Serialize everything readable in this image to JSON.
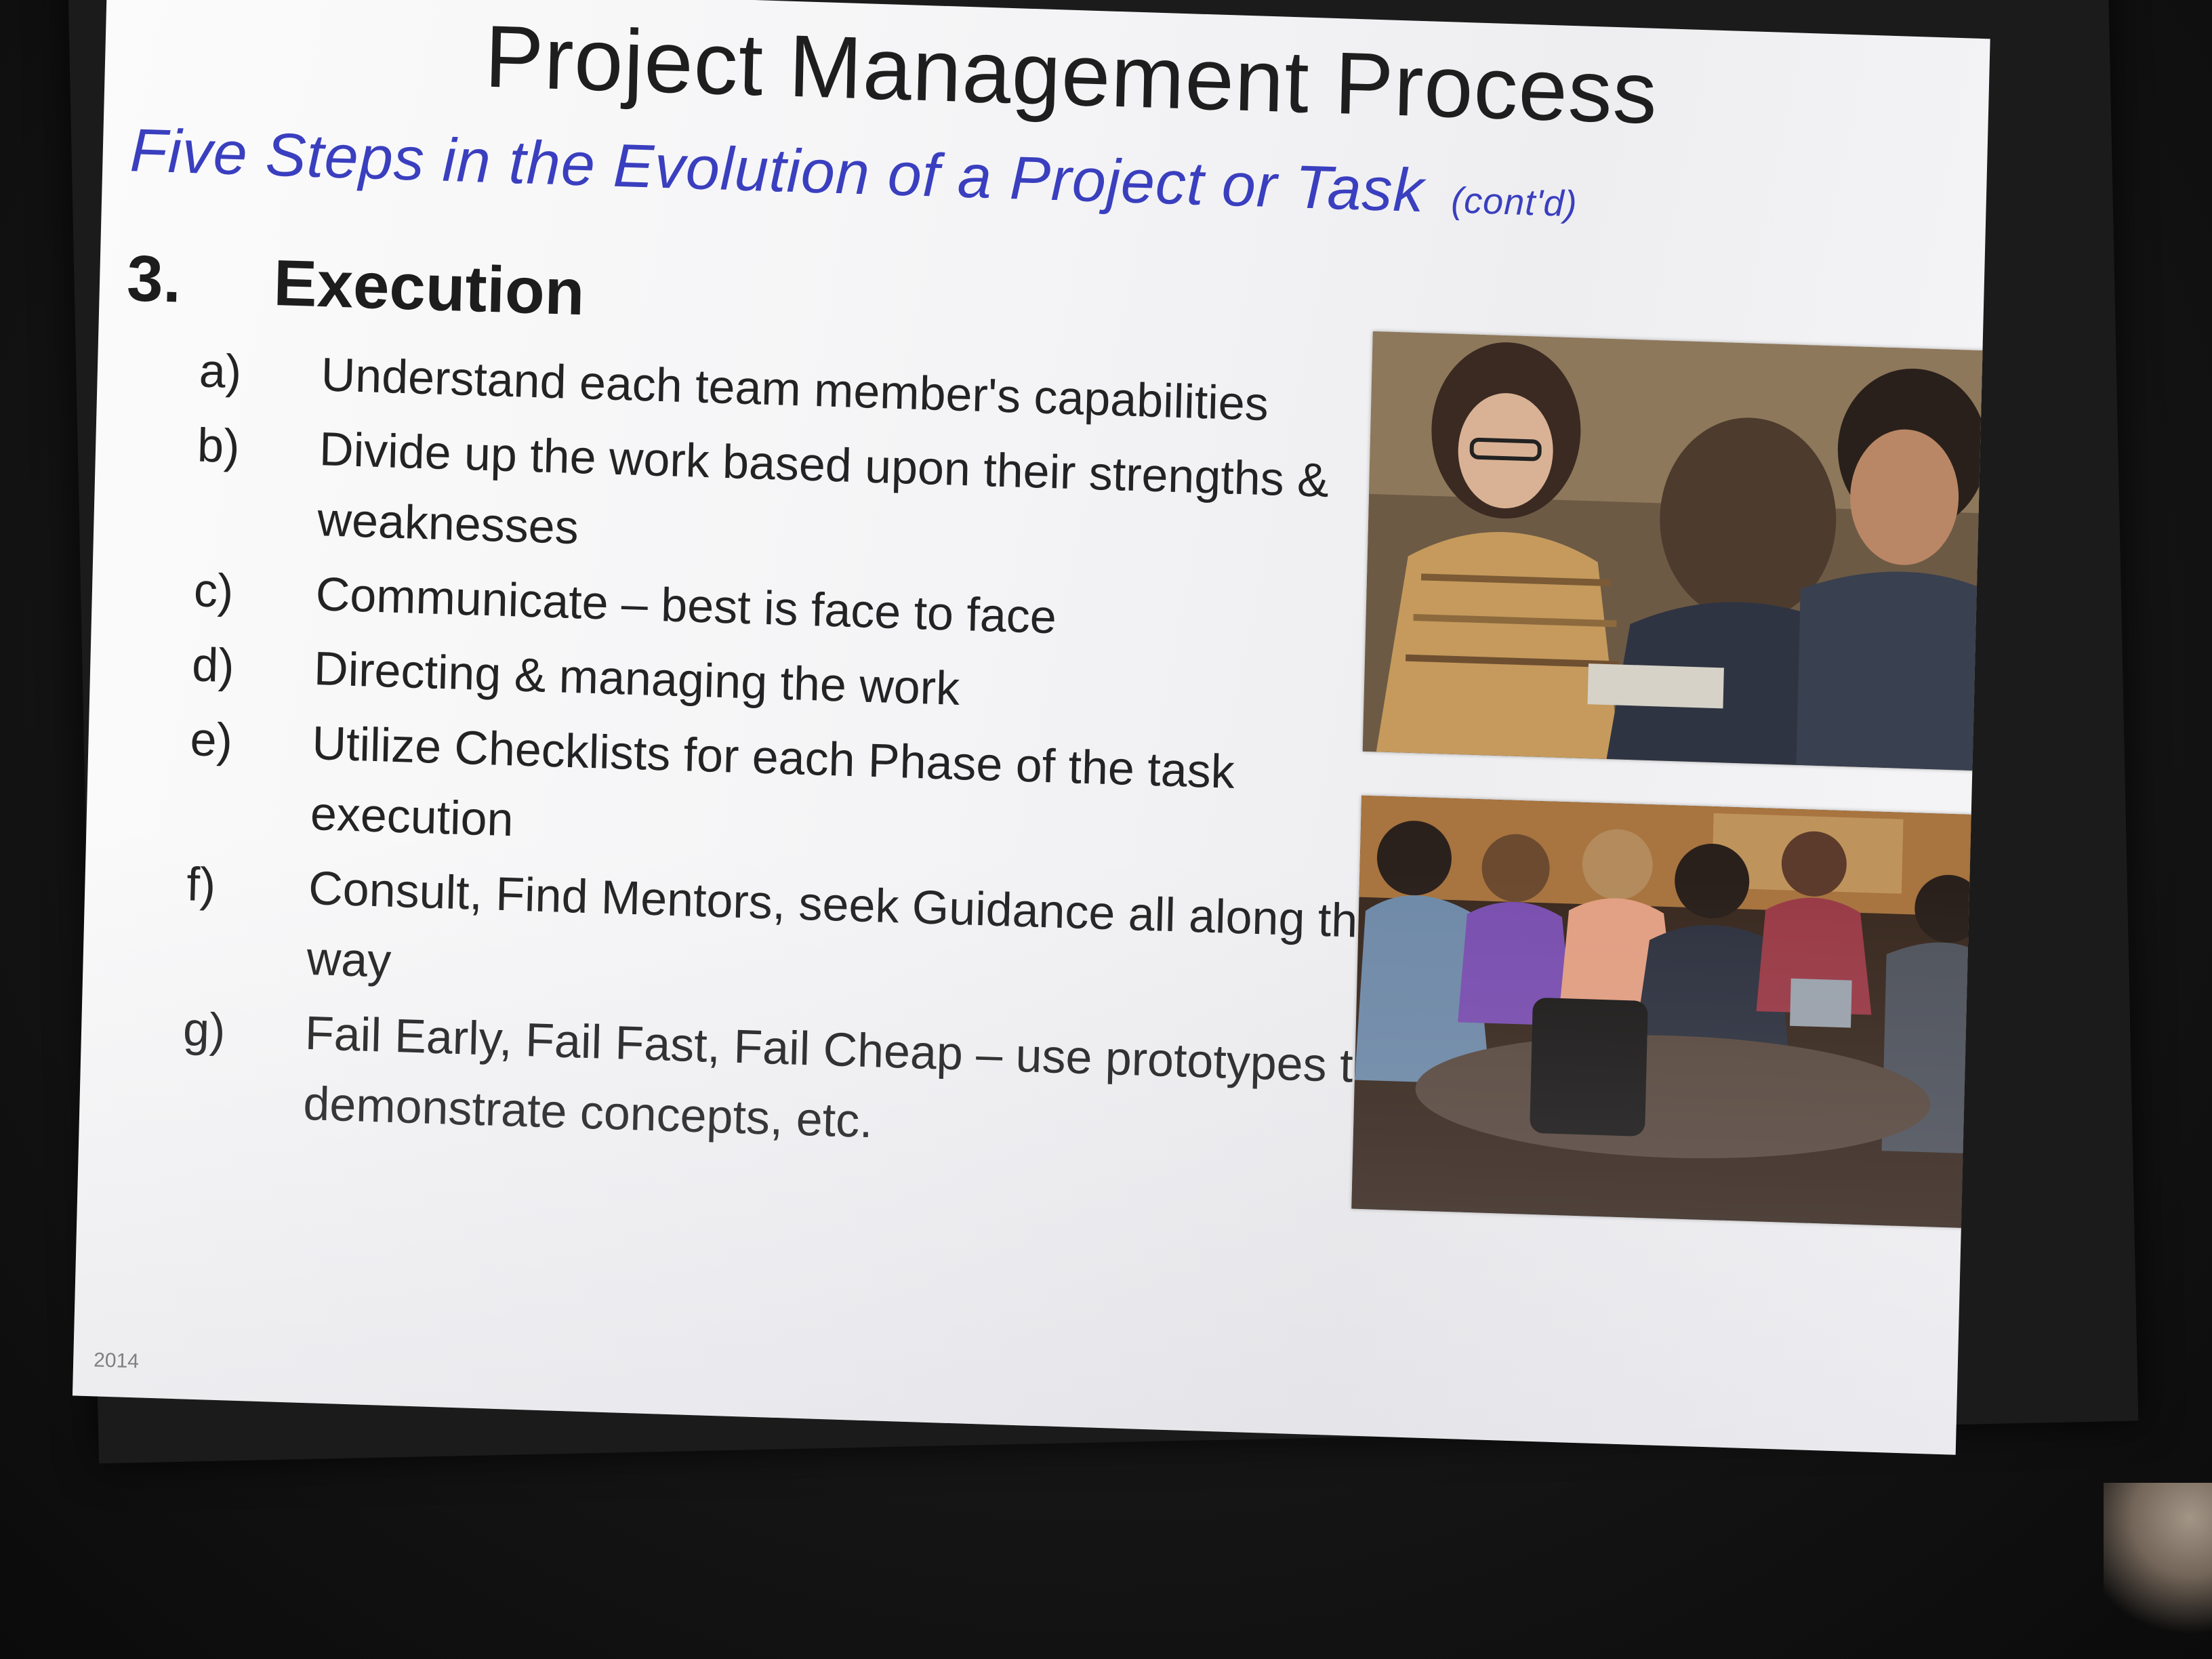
{
  "slide": {
    "title": "Project Management Process",
    "subtitle": "Five Steps in the Evolution of a Project or Task",
    "subtitle_note": "(cont'd)",
    "section_number": "3.",
    "section_title": "Execution",
    "items": [
      {
        "letter": "a)",
        "text": "Understand each team member's capabilities"
      },
      {
        "letter": "b)",
        "text": "Divide up the work based upon their strengths & weaknesses"
      },
      {
        "letter": "c)",
        "text": "Communicate – best is face to face"
      },
      {
        "letter": "d)",
        "text": "Directing & managing the work"
      },
      {
        "letter": "e)",
        "text": "Utilize Checklists for each Phase of the task execution"
      },
      {
        "letter": "f)",
        "text": "Consult, Find Mentors, seek Guidance all along the way"
      },
      {
        "letter": "g)",
        "text": "Fail Early, Fail Fast, Fail Cheap – use prototypes to demonstrate concepts, etc."
      }
    ],
    "footer": "2014"
  },
  "colors": {
    "subtitle": "#3a3fbf",
    "title": "#1e1e1e",
    "slide_background": "#f4f4f6"
  }
}
